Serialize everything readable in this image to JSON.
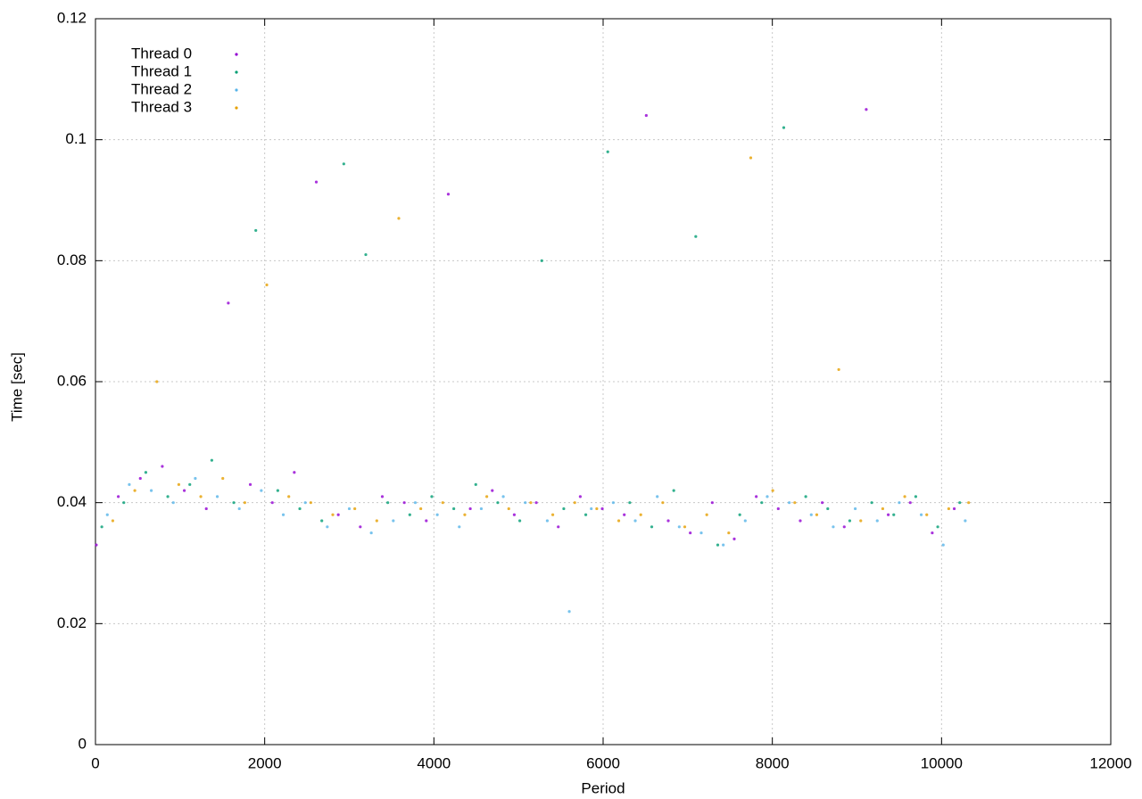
{
  "chart_data": {
    "type": "scatter",
    "x_label": "Period",
    "y_label": "Time [sec]",
    "xlim": [
      0,
      12000
    ],
    "ylim": [
      0,
      0.12
    ],
    "xticks": [
      0,
      2000,
      4000,
      6000,
      8000,
      10000,
      12000
    ],
    "yticks": [
      0,
      0.02,
      0.04,
      0.06,
      0.08,
      0.1,
      0.12
    ],
    "grid": true,
    "legend": "upper-left",
    "series": [
      {
        "name": "Thread 0",
        "color": "#9400d3",
        "x": [
          10,
          270,
          530,
          790,
          1050,
          1310,
          1570,
          1830,
          2090,
          2350,
          2610,
          2870,
          3130,
          3390,
          3650,
          3910,
          4170,
          4430,
          4690,
          4950,
          5210,
          5470,
          5730,
          5990,
          6250,
          6510,
          6770,
          7030,
          7290,
          7550,
          7810,
          8070,
          8330,
          8590,
          8850,
          9110,
          9370,
          9630,
          9890,
          10150
        ],
        "values": [
          0.033,
          0.041,
          0.044,
          0.046,
          0.042,
          0.039,
          0.073,
          0.043,
          0.04,
          0.045,
          0.093,
          0.038,
          0.036,
          0.041,
          0.04,
          0.037,
          0.091,
          0.039,
          0.042,
          0.038,
          0.04,
          0.036,
          0.041,
          0.039,
          0.038,
          0.104,
          0.037,
          0.035,
          0.04,
          0.034,
          0.041,
          0.039,
          0.037,
          0.04,
          0.036,
          0.105,
          0.038,
          0.04,
          0.035,
          0.039
        ]
      },
      {
        "name": "Thread 1",
        "color": "#009e73",
        "x": [
          75,
          335,
          595,
          855,
          1115,
          1375,
          1635,
          1895,
          2155,
          2415,
          2675,
          2935,
          3195,
          3455,
          3715,
          3975,
          4235,
          4495,
          4755,
          5015,
          5275,
          5535,
          5795,
          6055,
          6315,
          6575,
          6835,
          7095,
          7355,
          7615,
          7875,
          8135,
          8395,
          8655,
          8915,
          9175,
          9435,
          9695,
          9955,
          10215
        ],
        "values": [
          0.036,
          0.04,
          0.045,
          0.041,
          0.043,
          0.047,
          0.04,
          0.085,
          0.042,
          0.039,
          0.037,
          0.096,
          0.081,
          0.04,
          0.038,
          0.041,
          0.039,
          0.043,
          0.04,
          0.037,
          0.08,
          0.039,
          0.038,
          0.098,
          0.04,
          0.036,
          0.042,
          0.084,
          0.033,
          0.038,
          0.04,
          0.102,
          0.041,
          0.039,
          0.037,
          0.04,
          0.038,
          0.041,
          0.036,
          0.04
        ]
      },
      {
        "name": "Thread 2",
        "color": "#56b4e9",
        "x": [
          140,
          400,
          660,
          920,
          1180,
          1440,
          1700,
          1960,
          2220,
          2480,
          2740,
          3000,
          3260,
          3520,
          3780,
          4040,
          4300,
          4560,
          4820,
          5080,
          5340,
          5600,
          5860,
          6120,
          6380,
          6640,
          6900,
          7160,
          7420,
          7680,
          7940,
          8200,
          8460,
          8720,
          8980,
          9240,
          9500,
          9760,
          10020,
          10280
        ],
        "values": [
          0.038,
          0.043,
          0.042,
          0.04,
          0.044,
          0.041,
          0.039,
          0.042,
          0.038,
          0.04,
          0.036,
          0.039,
          0.035,
          0.037,
          0.04,
          0.038,
          0.036,
          0.039,
          0.041,
          0.04,
          0.037,
          0.022,
          0.039,
          0.04,
          0.037,
          0.041,
          0.036,
          0.035,
          0.033,
          0.037,
          0.041,
          0.04,
          0.038,
          0.036,
          0.039,
          0.037,
          0.04,
          0.038,
          0.033,
          0.037
        ]
      },
      {
        "name": "Thread 3",
        "color": "#e69f00",
        "x": [
          205,
          465,
          725,
          985,
          1245,
          1505,
          1765,
          2025,
          2285,
          2545,
          2805,
          3065,
          3325,
          3585,
          3845,
          4105,
          4365,
          4625,
          4885,
          5145,
          5405,
          5665,
          5925,
          6185,
          6445,
          6705,
          6965,
          7225,
          7485,
          7745,
          8005,
          8265,
          8525,
          8785,
          9045,
          9305,
          9565,
          9825,
          10085,
          10320
        ],
        "values": [
          0.037,
          0.042,
          0.06,
          0.043,
          0.041,
          0.044,
          0.04,
          0.076,
          0.041,
          0.04,
          0.038,
          0.039,
          0.037,
          0.087,
          0.039,
          0.04,
          0.038,
          0.041,
          0.039,
          0.04,
          0.038,
          0.04,
          0.039,
          0.037,
          0.038,
          0.04,
          0.036,
          0.038,
          0.035,
          0.097,
          0.042,
          0.04,
          0.038,
          0.062,
          0.037,
          0.039,
          0.041,
          0.038,
          0.039,
          0.04
        ]
      }
    ]
  }
}
